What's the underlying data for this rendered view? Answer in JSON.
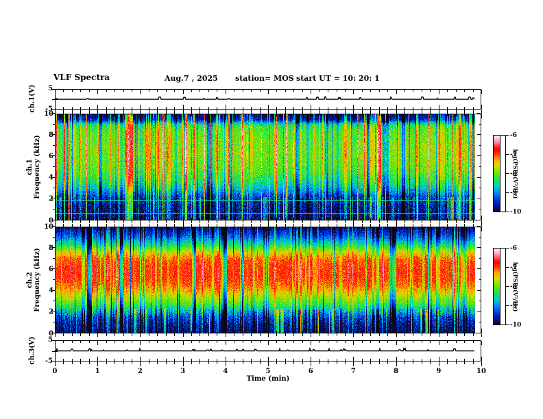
{
  "header": {
    "title": "VLF Spectra",
    "date": "Aug.7 , 2025",
    "station": "station= MOS",
    "start_ut": "start UT =   10: 20: 1"
  },
  "panels": {
    "ch1v_label": "ch.1(V)",
    "ch1_line1": "ch.1",
    "ch2_line1": "ch.2",
    "freq_axis_label": "Frequency (kHz)",
    "ch3v_label": "ch.3(V)"
  },
  "axes": {
    "time_label": "Time (min)",
    "time_ticks": [
      "0",
      "1",
      "2",
      "3",
      "4",
      "5",
      "6",
      "7",
      "8",
      "9",
      "10"
    ],
    "freq_ticks": [
      "10",
      "8",
      "6",
      "4",
      "2",
      "0"
    ],
    "volt_ticks": [
      "5",
      "-5"
    ],
    "colorbar_ticks": [
      "-6",
      "-7",
      "-8",
      "-9",
      "-10"
    ],
    "colorbar_label": "log(PSD)(V²/Hz)"
  },
  "colormap": {
    "stops": [
      [
        0.0,
        "#08081e"
      ],
      [
        0.12,
        "#001ec8"
      ],
      [
        0.25,
        "#008cff"
      ],
      [
        0.33,
        "#00d2be"
      ],
      [
        0.42,
        "#1ee150"
      ],
      [
        0.52,
        "#78e600"
      ],
      [
        0.6,
        "#dcdc00"
      ],
      [
        0.68,
        "#ffaa00"
      ],
      [
        0.75,
        "#ff3c00"
      ],
      [
        0.82,
        "#ff0000"
      ],
      [
        0.88,
        "#ff5a6e"
      ],
      [
        0.94,
        "#ffb4be"
      ],
      [
        1.0,
        "#fff5f8"
      ]
    ]
  },
  "chart_data": [
    {
      "type": "line",
      "name": "ch1_voltage",
      "ylabel": "ch.1(V)",
      "xlim": [
        0,
        10
      ],
      "ylim": [
        -5,
        5
      ],
      "baseline": 0,
      "description": "flat trace at 0 V with small impulsive bumps"
    },
    {
      "type": "heatmap",
      "name": "ch1_spectrogram",
      "xlabel": "Time (min)",
      "ylabel": "Frequency (kHz)",
      "zlabel": "log(PSD)(V²/Hz)",
      "xlim": [
        0,
        10
      ],
      "ylim": [
        0,
        10
      ],
      "zlim": [
        -10,
        -6
      ],
      "freq_profile": [
        [
          0,
          -9.9
        ],
        [
          0.3,
          -9.85
        ],
        [
          0.7,
          -9.75
        ],
        [
          1,
          -9.8
        ],
        [
          1.4,
          -9.75
        ],
        [
          1.8,
          -9.6
        ],
        [
          2.2,
          -9.45
        ],
        [
          2.6,
          -9.1
        ],
        [
          3,
          -8.8
        ],
        [
          3.5,
          -8.5
        ],
        [
          4,
          -8.3
        ],
        [
          4.5,
          -8.15
        ],
        [
          5,
          -8.05
        ],
        [
          5.5,
          -8
        ],
        [
          6,
          -7.95
        ],
        [
          7,
          -7.95
        ],
        [
          7.5,
          -8
        ],
        [
          8,
          -8.05
        ],
        [
          8.5,
          -8.1
        ],
        [
          9,
          -8.35
        ],
        [
          9.3,
          -9.1
        ],
        [
          9.5,
          -9.6
        ],
        [
          10,
          -9.8
        ]
      ],
      "line_features_khz": [
        0.65,
        1.9
      ],
      "texture": {
        "spike_frac": 0.08,
        "spike_amp": [
          0.9,
          1.0
        ],
        "minor_frac": 0.22,
        "minor_amp": [
          0.35,
          0.5
        ],
        "drop_frac": 0.15,
        "drop_amp": [
          0.4,
          0.7
        ],
        "strong_drop_frac": 0,
        "strong_drop_amp": [
          0,
          0
        ],
        "base_jitter": 0.3,
        "noise_sigma": 0.35,
        "bottom_noise_sigma": 0.5,
        "bottom_khz": 2.2,
        "top_khz": 9.2,
        "top_env": 1.5,
        "bottom_env": 1.0,
        "bottom_boost_frac": 0.15,
        "bottom_boost_amp": [
          0.5,
          0.7
        ]
      }
    },
    {
      "type": "heatmap",
      "name": "ch2_spectrogram",
      "xlabel": "Time (min)",
      "ylabel": "Frequency (kHz)",
      "zlabel": "log(PSD)(V²/Hz)",
      "xlim": [
        0,
        10
      ],
      "ylim": [
        0,
        10
      ],
      "zlim": [
        -10,
        -6
      ],
      "freq_profile": [
        [
          0,
          -9.9
        ],
        [
          0.4,
          -9.8
        ],
        [
          0.8,
          -9.7
        ],
        [
          1.2,
          -9.55
        ],
        [
          1.6,
          -9.3
        ],
        [
          2,
          -8.9
        ],
        [
          2.4,
          -8.5
        ],
        [
          2.8,
          -8.15
        ],
        [
          3.2,
          -7.9
        ],
        [
          3.6,
          -7.65
        ],
        [
          4,
          -7.4
        ],
        [
          4.5,
          -7.15
        ],
        [
          5,
          -7.0
        ],
        [
          5.6,
          -6.9
        ],
        [
          6.2,
          -6.95
        ],
        [
          6.8,
          -7.05
        ],
        [
          7.2,
          -7.25
        ],
        [
          7.5,
          -7.5
        ],
        [
          7.8,
          -7.8
        ],
        [
          8.1,
          -8.15
        ],
        [
          8.4,
          -8.5
        ],
        [
          8.7,
          -8.8
        ],
        [
          9,
          -9.1
        ],
        [
          9.3,
          -9.35
        ],
        [
          9.7,
          -9.6
        ],
        [
          10,
          -9.8
        ]
      ],
      "line_features_khz": [],
      "texture": {
        "spike_frac": 0.07,
        "spike_amp": [
          0.25,
          0.35
        ],
        "minor_frac": 0.1,
        "minor_amp": [
          0.15,
          0.2
        ],
        "drop_frac": 0.15,
        "drop_amp": [
          0.35,
          0.6
        ],
        "strong_drop_frac": 0.07,
        "strong_drop_amp": [
          1.2,
          1.0
        ],
        "base_jitter": 0.2,
        "noise_sigma": 0.3,
        "bottom_noise_sigma": 0.45,
        "bottom_khz": 2.3,
        "top_khz": 9.0,
        "top_env": 1.5,
        "bottom_env": 1.5,
        "bottom_boost_frac": 0.1,
        "bottom_boost_amp": [
          0.8,
          0.8
        ]
      }
    },
    {
      "type": "line",
      "name": "ch3_voltage",
      "ylabel": "ch.3(V)",
      "xlim": [
        0,
        10
      ],
      "ylim": [
        -5,
        5
      ],
      "baseline": 0,
      "description": "flat trace at 0 V with small impulsive bumps"
    }
  ]
}
